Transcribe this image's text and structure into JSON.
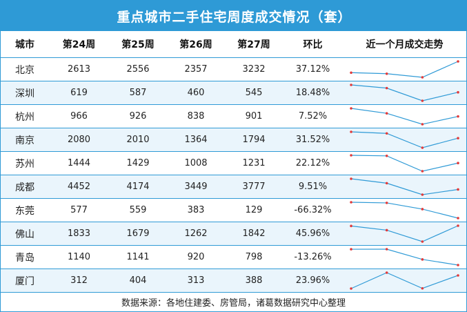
{
  "title": "重点城市二手住宅周度成交情况（套）",
  "columns": [
    "城市",
    "第24周",
    "第25周",
    "第26周",
    "第27周",
    "环比",
    "近一个月成交走势"
  ],
  "footer": "数据来源：各地住建委、房管局，诸葛数据研究中心整理",
  "colors": {
    "header_bg": "#2e9ad6",
    "line": "#2e9ad6",
    "point": "#e23b3b"
  },
  "chart_data": {
    "type": "table",
    "title": "重点城市二手住宅周度成交情况（套）",
    "categories": [
      "第24周",
      "第25周",
      "第26周",
      "第27周"
    ],
    "rows": [
      {
        "city": "北京",
        "values": [
          2613,
          2556,
          2357,
          3232
        ],
        "change": "37.12%"
      },
      {
        "city": "深圳",
        "values": [
          619,
          587,
          460,
          545
        ],
        "change": "18.48%"
      },
      {
        "city": "杭州",
        "values": [
          966,
          926,
          838,
          901
        ],
        "change": "7.52%"
      },
      {
        "city": "南京",
        "values": [
          2080,
          2010,
          1364,
          1794
        ],
        "change": "31.52%"
      },
      {
        "city": "苏州",
        "values": [
          1444,
          1429,
          1008,
          1231
        ],
        "change": "22.12%"
      },
      {
        "city": "成都",
        "values": [
          4452,
          4174,
          3449,
          3777
        ],
        "change": "9.51%"
      },
      {
        "city": "东莞",
        "values": [
          577,
          559,
          383,
          129
        ],
        "change": "-66.32%"
      },
      {
        "city": "佛山",
        "values": [
          1833,
          1679,
          1262,
          1842
        ],
        "change": "45.96%"
      },
      {
        "city": "青岛",
        "values": [
          1140,
          1141,
          920,
          798
        ],
        "change": "-13.26%"
      },
      {
        "city": "厦门",
        "values": [
          312,
          404,
          313,
          388
        ],
        "change": "23.96%"
      }
    ]
  }
}
